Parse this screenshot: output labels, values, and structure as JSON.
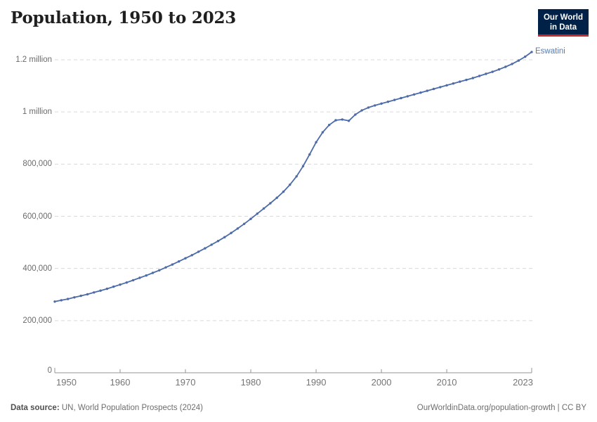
{
  "header": {
    "title": "Population, 1950 to 2023",
    "logo": {
      "line1": "Our World",
      "line2": "in Data"
    }
  },
  "colors": {
    "line": "#4c6ba8",
    "entity_label": "#5b7bab",
    "logo_bg": "#002147",
    "logo_underline": "#c5292a",
    "gridline": "#d9d9d9",
    "axis": "#949494"
  },
  "chart_data": {
    "type": "line",
    "title": "Population, 1950 to 2023",
    "xlabel": "",
    "ylabel": "",
    "xlim": [
      1950,
      2023
    ],
    "ylim": [
      0,
      1200000
    ],
    "grid": "horizontal-dashed",
    "legend_position": "line-end-label",
    "xticks": [
      1950,
      1960,
      1970,
      1980,
      1990,
      2000,
      2010,
      2023
    ],
    "yticks": [
      {
        "value": 1200000,
        "label": "1.2 million"
      },
      {
        "value": 1000000,
        "label": "1 million"
      },
      {
        "value": 800000,
        "label": "800,000"
      },
      {
        "value": 600000,
        "label": "600,000"
      },
      {
        "value": 400000,
        "label": "400,000"
      },
      {
        "value": 200000,
        "label": "200,000"
      },
      {
        "value": 0,
        "label": "0"
      }
    ],
    "x": [
      1950,
      1951,
      1952,
      1953,
      1954,
      1955,
      1956,
      1957,
      1958,
      1959,
      1960,
      1961,
      1962,
      1963,
      1964,
      1965,
      1966,
      1967,
      1968,
      1969,
      1970,
      1971,
      1972,
      1973,
      1974,
      1975,
      1976,
      1977,
      1978,
      1979,
      1980,
      1981,
      1982,
      1983,
      1984,
      1985,
      1986,
      1987,
      1988,
      1989,
      1990,
      1991,
      1992,
      1993,
      1994,
      1995,
      1996,
      1997,
      1998,
      1999,
      2000,
      2001,
      2002,
      2003,
      2004,
      2005,
      2006,
      2007,
      2008,
      2009,
      2010,
      2011,
      2012,
      2013,
      2014,
      2015,
      2016,
      2017,
      2018,
      2019,
      2020,
      2021,
      2022,
      2023
    ],
    "series": [
      {
        "name": "Eswatini",
        "color": "#4c6ba8",
        "values": [
          273000,
          278000,
          283000,
          289000,
          295000,
          301000,
          308000,
          315000,
          322000,
          330000,
          338000,
          346000,
          355000,
          364000,
          373000,
          383000,
          393000,
          404000,
          415000,
          427000,
          439000,
          451000,
          464000,
          477000,
          491000,
          505000,
          520000,
          536000,
          553000,
          571000,
          590000,
          610000,
          630000,
          650000,
          671000,
          694000,
          721000,
          753000,
          792000,
          837000,
          884000,
          922000,
          950000,
          968000,
          971000,
          966000,
          990000,
          1006000,
          1017000,
          1025000,
          1032000,
          1039000,
          1046000,
          1053000,
          1060000,
          1067000,
          1074000,
          1081000,
          1088000,
          1095000,
          1102000,
          1109000,
          1116000,
          1123000,
          1130000,
          1138000,
          1146000,
          1154000,
          1163000,
          1173000,
          1184000,
          1197000,
          1212000,
          1230000
        ]
      }
    ]
  },
  "footer": {
    "source_label": "Data source:",
    "source_text": "UN, World Population Prospects (2024)",
    "right_text": "OurWorldinData.org/population-growth | CC BY"
  }
}
